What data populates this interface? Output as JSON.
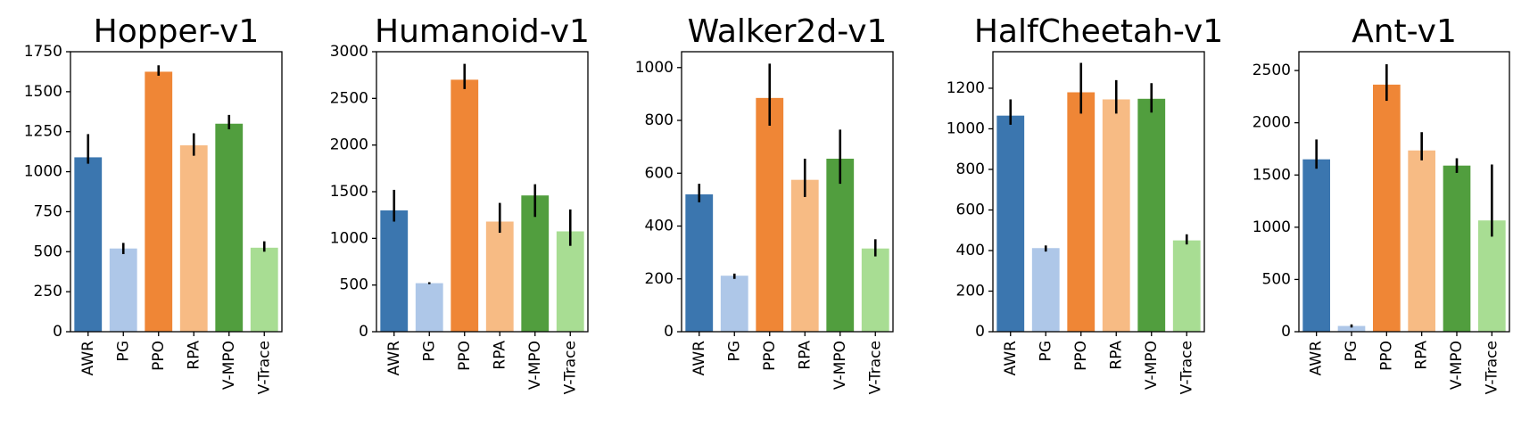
{
  "chart_data": [
    {
      "type": "bar",
      "title": "Hopper-v1",
      "categories": [
        "AWR",
        "PG",
        "PPO",
        "RPA",
        "V-MPO",
        "V-Trace"
      ],
      "values": [
        1090,
        520,
        1625,
        1165,
        1300,
        525
      ],
      "errors": [
        [
          1050,
          1235
        ],
        [
          485,
          555
        ],
        [
          1600,
          1665
        ],
        [
          1100,
          1240
        ],
        [
          1265,
          1355
        ],
        [
          500,
          565
        ]
      ],
      "ylim": [
        0,
        1750
      ],
      "yticks": [
        0,
        250,
        500,
        750,
        1000,
        1250,
        1500,
        1750
      ],
      "colors": [
        "#3b76af",
        "#aec7e8",
        "#ef8636",
        "#f7bb84",
        "#519e3e",
        "#a8dd93"
      ],
      "grid": false,
      "xlabel": "",
      "ylabel": ""
    },
    {
      "type": "bar",
      "title": "Humanoid-v1",
      "categories": [
        "AWR",
        "PG",
        "PPO",
        "RPA",
        "V-MPO",
        "V-Trace"
      ],
      "values": [
        1300,
        520,
        2700,
        1180,
        1460,
        1075
      ],
      "errors": [
        [
          1180,
          1520
        ],
        [
          510,
          530
        ],
        [
          2600,
          2870
        ],
        [
          1060,
          1380
        ],
        [
          1230,
          1580
        ],
        [
          920,
          1310
        ]
      ],
      "ylim": [
        0,
        3000
      ],
      "yticks": [
        0,
        500,
        1000,
        1500,
        2000,
        2500,
        3000
      ],
      "colors": [
        "#3b76af",
        "#aec7e8",
        "#ef8636",
        "#f7bb84",
        "#519e3e",
        "#a8dd93"
      ],
      "grid": false,
      "xlabel": "",
      "ylabel": ""
    },
    {
      "type": "bar",
      "title": "Walker2d-v1",
      "categories": [
        "AWR",
        "PG",
        "PPO",
        "RPA",
        "V-MPO",
        "V-Trace"
      ],
      "values": [
        520,
        212,
        885,
        575,
        655,
        315
      ],
      "errors": [
        [
          490,
          560
        ],
        [
          200,
          220
        ],
        [
          780,
          1015
        ],
        [
          510,
          655
        ],
        [
          560,
          765
        ],
        [
          285,
          350
        ]
      ],
      "ylim": [
        0,
        1060
      ],
      "yticks": [
        0,
        200,
        400,
        600,
        800,
        1000
      ],
      "colors": [
        "#3b76af",
        "#aec7e8",
        "#ef8636",
        "#f7bb84",
        "#519e3e",
        "#a8dd93"
      ],
      "grid": false,
      "xlabel": "",
      "ylabel": ""
    },
    {
      "type": "bar",
      "title": "HalfCheetah-v1",
      "categories": [
        "AWR",
        "PG",
        "PPO",
        "RPA",
        "V-MPO",
        "V-Trace"
      ],
      "values": [
        1065,
        412,
        1180,
        1145,
        1148,
        450
      ],
      "errors": [
        [
          1020,
          1145
        ],
        [
          395,
          425
        ],
        [
          1075,
          1325
        ],
        [
          1075,
          1240
        ],
        [
          1080,
          1225
        ],
        [
          430,
          480
        ]
      ],
      "ylim": [
        0,
        1380
      ],
      "yticks": [
        0,
        200,
        400,
        600,
        800,
        1000,
        1200
      ],
      "colors": [
        "#3b76af",
        "#aec7e8",
        "#ef8636",
        "#f7bb84",
        "#519e3e",
        "#a8dd93"
      ],
      "grid": false,
      "xlabel": "",
      "ylabel": ""
    },
    {
      "type": "bar",
      "title": "Ant-v1",
      "categories": [
        "AWR",
        "PG",
        "PPO",
        "RPA",
        "V-MPO",
        "V-Trace"
      ],
      "values": [
        1650,
        55,
        2365,
        1735,
        1590,
        1065
      ],
      "errors": [
        [
          1560,
          1840
        ],
        [
          40,
          70
        ],
        [
          2210,
          2560
        ],
        [
          1640,
          1910
        ],
        [
          1520,
          1660
        ],
        [
          910,
          1600
        ]
      ],
      "ylim": [
        0,
        2680
      ],
      "yticks": [
        0,
        500,
        1000,
        1500,
        2000,
        2500
      ],
      "colors": [
        "#3b76af",
        "#aec7e8",
        "#ef8636",
        "#f7bb84",
        "#519e3e",
        "#a8dd93"
      ],
      "grid": false,
      "xlabel": "",
      "ylabel": ""
    }
  ]
}
